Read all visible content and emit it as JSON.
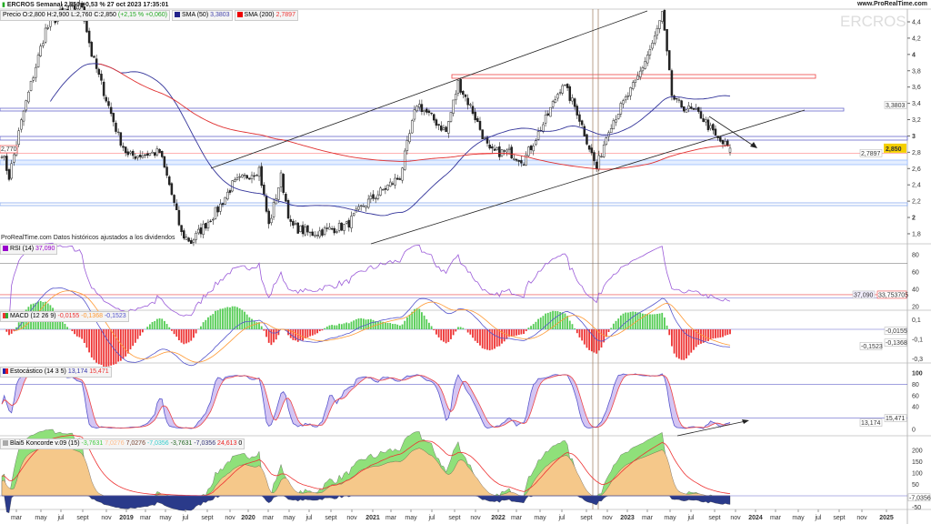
{
  "header": {
    "title": "ERCROS Semanal 2,850 +0,53 % 27 oct 2023 17:35:01",
    "site": "www.ProRealTime.com",
    "watermark": "ERCROS",
    "price_label": "Precio O:2,800 H:2,900 L:2,760 C:2,850",
    "price_change": "(+2,15 % +0,060)",
    "sma50_label": "SMA (50)",
    "sma50_value": "3,3803",
    "sma200_label": "SMA (200)",
    "sma200_value": "2,7897",
    "source_note": "ProRealTime.com  Datos históricos ajustados a los dividendos"
  },
  "colors": {
    "sma50": "#3a3aa0",
    "sma200": "#e03030",
    "up": "#ffffff",
    "down": "#222222"
  },
  "price_scale": {
    "ticks": [
      "4,4",
      "4,2",
      "4",
      "3,8",
      "3,6",
      "3,4",
      "3,2",
      "3",
      "2,8",
      "2,6",
      "2,4",
      "2,2",
      "2",
      "1,8"
    ],
    "last": "2,850",
    "sma50": "3,3803",
    "sma200": "2,7897",
    "left_tag": "2,770"
  },
  "rsi": {
    "label": "RSI (14)",
    "value": "37,090",
    "ref": "33,753705",
    "ticks": [
      "80",
      "60",
      "40",
      "20"
    ]
  },
  "macd": {
    "label": "MACD (12 26 9)",
    "v1": "-0,0155",
    "v2": "-0,1368",
    "v3": "-0,1523",
    "ticks": [
      "0,1",
      "-0,1",
      "-0,3"
    ]
  },
  "stoch": {
    "label": "Estocástico (14 3 5)",
    "k": "13,174",
    "d": "15,471",
    "ticks": [
      "100",
      "80",
      "60",
      "40",
      "0"
    ]
  },
  "koncorde": {
    "label": "Blai5 Koncorde v.09 (15)",
    "vals": [
      "-3,7631",
      "7,0276",
      "7,0276",
      "-7,0356",
      "-3,7631",
      "-7,0356",
      "24,613",
      "0"
    ],
    "tag": "-7,0356",
    "ticks": [
      "200",
      "150",
      "100",
      "50",
      "-50"
    ]
  },
  "xaxis": {
    "labels": [
      "mar",
      "may",
      "jul",
      "sept",
      "nov",
      "2019",
      "mar",
      "may",
      "jul",
      "sept",
      "nov",
      "2020",
      "mar",
      "may",
      "jul",
      "sept",
      "nov",
      "2021",
      "mar",
      "may",
      "jul",
      "sept",
      "nov",
      "2022",
      "mar",
      "may",
      "jul",
      "sept",
      "nov",
      "2023",
      "mar",
      "may",
      "jul",
      "sept",
      "nov",
      "2024",
      "mar",
      "may",
      "jul",
      "sept",
      "nov",
      "2025"
    ]
  },
  "chart_data": {
    "type": "candlestick",
    "title": "ERCROS Semanal",
    "period": "weekly",
    "last_date": "27 oct 2023",
    "close_waypoints": [
      [
        0,
        2.8
      ],
      [
        3,
        2.5
      ],
      [
        9,
        3.3
      ],
      [
        18,
        4.3
      ],
      [
        24,
        4.5
      ],
      [
        33,
        4.6
      ],
      [
        37,
        4.0
      ],
      [
        48,
        3.0
      ],
      [
        52,
        2.75
      ],
      [
        65,
        2.8
      ],
      [
        69,
        2.4
      ],
      [
        74,
        1.8
      ],
      [
        78,
        1.7
      ],
      [
        89,
        2.1
      ],
      [
        95,
        2.4
      ],
      [
        106,
        2.6
      ],
      [
        110,
        1.9
      ],
      [
        115,
        2.5
      ],
      [
        119,
        1.9
      ],
      [
        127,
        1.8
      ],
      [
        142,
        1.9
      ],
      [
        149,
        2.15
      ],
      [
        164,
        2.5
      ],
      [
        171,
        3.4
      ],
      [
        183,
        3.05
      ],
      [
        188,
        3.65
      ],
      [
        194,
        3.3
      ],
      [
        201,
        2.8
      ],
      [
        209,
        2.8
      ],
      [
        215,
        2.7
      ],
      [
        224,
        3.2
      ],
      [
        231,
        3.65
      ],
      [
        237,
        3.3
      ],
      [
        245,
        2.6
      ],
      [
        250,
        3.1
      ],
      [
        261,
        3.65
      ],
      [
        269,
        4.2
      ],
      [
        272,
        4.5
      ],
      [
        276,
        3.5
      ],
      [
        278,
        3.4
      ],
      [
        288,
        3.25
      ],
      [
        295,
        2.95
      ],
      [
        300,
        2.85
      ]
    ],
    "last": {
      "open": 2.8,
      "high": 2.9,
      "low": 2.76,
      "close": 2.85
    },
    "ylim": [
      1.7,
      4.55
    ],
    "levels": [
      3.74,
      3.37,
      3.0,
      2.7,
      2.18
    ]
  }
}
